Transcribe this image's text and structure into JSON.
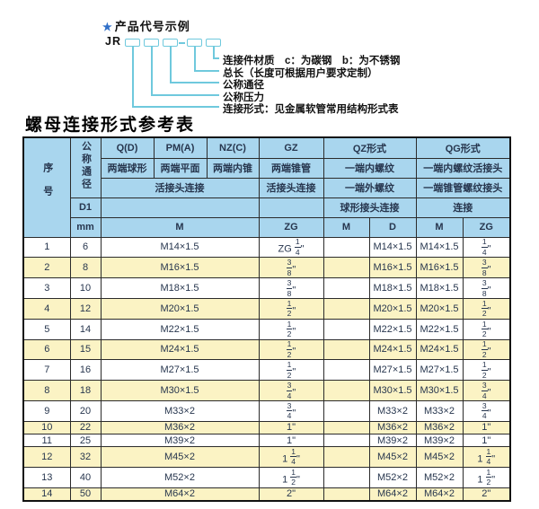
{
  "colors": {
    "header_bg": "#a9d6ee",
    "row_alt": "#fbf3c4",
    "line_accent": "#6fc9dd",
    "star_blue": "#2f6fc8",
    "header_text": "#16386b",
    "data_text": "#27364e",
    "border": "#2b2b2b"
  },
  "diagram": {
    "star": "★",
    "title": "产品代号示例",
    "prefix": "JR",
    "labels": [
      "连接件材质　c：为碳钢　b：为不锈钢",
      "总长（长度可根据用户要求定制）",
      "公称通径",
      "公称压力",
      "连接形式：见金属软管常用结构形式表"
    ]
  },
  "section_title": "螺母连接形式参考表",
  "table": {
    "header": {
      "seq": "序号",
      "dn": "公称通径",
      "d1": "D1",
      "mm": "mm",
      "col_q": "Q(D)",
      "col_pm": "PM(A)",
      "col_nz": "NZ(C)",
      "col_gz": "GZ",
      "col_qz": "QZ形式",
      "col_qg": "QG形式",
      "q_desc": "两端球形",
      "pm_desc": "两端平面",
      "nz_desc": "两端内锥",
      "gz_desc": "两端锥管",
      "qz_desc1": "一端内螺纹",
      "qg_desc1": "一端内螺纹活接头",
      "left_conn": "活接头连接",
      "gz_conn": "活接头连接",
      "qz_desc2": "一端外螺纹",
      "qg_desc2": "一端锥管螺纹接头",
      "qz_conn": "球形接头连接",
      "qg_conn": "连接",
      "m": "M",
      "zg": "ZG",
      "qz_m": "M",
      "qz_d": "D",
      "qg_m": "M",
      "qg_zg": "ZG"
    },
    "rows": [
      {
        "seq": "1",
        "dn": "6",
        "m": "M14×1.5",
        "zg": "ZG 1/4\"",
        "qz_m": "",
        "qz_d": "M14×1.5",
        "qg_m": "M14×1.5",
        "qg_zg": "1/4\""
      },
      {
        "seq": "2",
        "dn": "8",
        "m": "M16×1.5",
        "zg": "3/8\"",
        "qz_m": "",
        "qz_d": "M16×1.5",
        "qg_m": "M16×1.5",
        "qg_zg": "3/8\""
      },
      {
        "seq": "3",
        "dn": "10",
        "m": "M18×1.5",
        "zg": "3/8\"",
        "qz_m": "",
        "qz_d": "M18×1.5",
        "qg_m": "M18×1.5",
        "qg_zg": "3/8\""
      },
      {
        "seq": "4",
        "dn": "12",
        "m": "M20×1.5",
        "zg": "1/2\"",
        "qz_m": "",
        "qz_d": "M20×1.5",
        "qg_m": "M20×1.5",
        "qg_zg": "1/2\""
      },
      {
        "seq": "5",
        "dn": "14",
        "m": "M22×1.5",
        "zg": "1/2\"",
        "qz_m": "",
        "qz_d": "M22×1.5",
        "qg_m": "M22×1.5",
        "qg_zg": "1/2\""
      },
      {
        "seq": "6",
        "dn": "15",
        "m": "M24×1.5",
        "zg": "1/2\"",
        "qz_m": "",
        "qz_d": "M24×1.5",
        "qg_m": "M24×1.5",
        "qg_zg": "1/2\""
      },
      {
        "seq": "7",
        "dn": "16",
        "m": "M27×1.5",
        "zg": "1/2\"",
        "qz_m": "",
        "qz_d": "M27×1.5",
        "qg_m": "M27×1.5",
        "qg_zg": "1/2\""
      },
      {
        "seq": "8",
        "dn": "18",
        "m": "M30×1.5",
        "zg": "3/4\"",
        "qz_m": "",
        "qz_d": "M30×1.5",
        "qg_m": "M30×1.5",
        "qg_zg": "3/4\""
      },
      {
        "seq": "9",
        "dn": "20",
        "m": "M33×2",
        "zg": "3/4\"",
        "qz_m": "",
        "qz_d": "M33×2",
        "qg_m": "M33×2",
        "qg_zg": "3/4\""
      },
      {
        "seq": "10",
        "dn": "22",
        "m": "M36×2",
        "zg": "1\"",
        "qz_m": "",
        "qz_d": "M36×2",
        "qg_m": "M36×2",
        "qg_zg": "1\""
      },
      {
        "seq": "11",
        "dn": "25",
        "m": "M39×2",
        "zg": "1\"",
        "qz_m": "",
        "qz_d": "M39×2",
        "qg_m": "M39×2",
        "qg_zg": "1\""
      },
      {
        "seq": "12",
        "dn": "32",
        "m": "M45×2",
        "zg": "1 1/4\"",
        "qz_m": "",
        "qz_d": "M45×2",
        "qg_m": "M45×2",
        "qg_zg": "1 1/4\""
      },
      {
        "seq": "13",
        "dn": "40",
        "m": "M52×2",
        "zg": "1 1/2\"",
        "qz_m": "",
        "qz_d": "M52×2",
        "qg_m": "M52×2",
        "qg_zg": "1 1/2\""
      },
      {
        "seq": "14",
        "dn": "50",
        "m": "M64×2",
        "zg": "2\"",
        "qz_m": "",
        "qz_d": "M64×2",
        "qg_m": "M64×2",
        "qg_zg": "2\""
      }
    ]
  }
}
